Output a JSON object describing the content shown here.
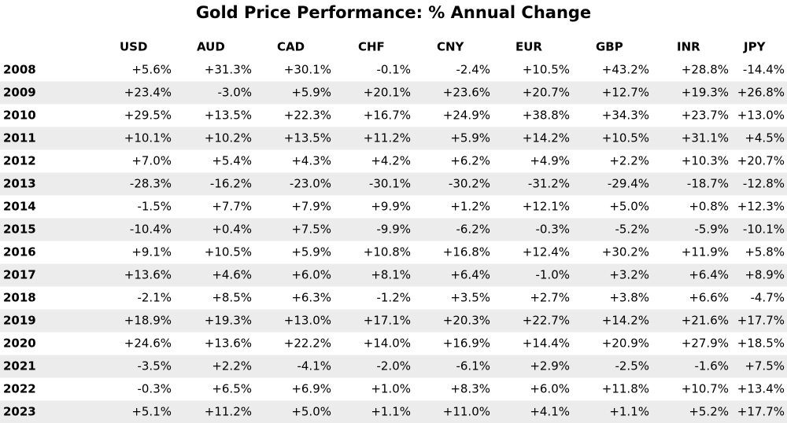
{
  "header": {
    "title": "Gold Price Performance: % Annual Change"
  },
  "table": {
    "columns": [
      "USD",
      "AUD",
      "CAD",
      "CHF",
      "CNY",
      "EUR",
      "GBP",
      "INR",
      "JPY"
    ],
    "positive_color": "#1f9a1f",
    "negative_color": "#ee1c25",
    "rows": [
      {
        "label": "2008",
        "cells": [
          "+5.6%",
          "+31.3%",
          "+30.1%",
          "-0.1%",
          "-2.4%",
          "+10.5%",
          "+43.2%",
          "+28.8%",
          "-14.4%"
        ]
      },
      {
        "label": "2009",
        "cells": [
          "+23.4%",
          "-3.0%",
          "+5.9%",
          "+20.1%",
          "+23.6%",
          "+20.7%",
          "+12.7%",
          "+19.3%",
          "+26.8%"
        ]
      },
      {
        "label": "2010",
        "cells": [
          "+29.5%",
          "+13.5%",
          "+22.3%",
          "+16.7%",
          "+24.9%",
          "+38.8%",
          "+34.3%",
          "+23.7%",
          "+13.0%"
        ]
      },
      {
        "label": "2011",
        "cells": [
          "+10.1%",
          "+10.2%",
          "+13.5%",
          "+11.2%",
          "+5.9%",
          "+14.2%",
          "+10.5%",
          "+31.1%",
          "+4.5%"
        ]
      },
      {
        "label": "2012",
        "cells": [
          "+7.0%",
          "+5.4%",
          "+4.3%",
          "+4.2%",
          "+6.2%",
          "+4.9%",
          "+2.2%",
          "+10.3%",
          "+20.7%"
        ]
      },
      {
        "label": "2013",
        "cells": [
          "-28.3%",
          "-16.2%",
          "-23.0%",
          "-30.1%",
          "-30.2%",
          "-31.2%",
          "-29.4%",
          "-18.7%",
          "-12.8%"
        ]
      },
      {
        "label": "2014",
        "cells": [
          "-1.5%",
          "+7.7%",
          "+7.9%",
          "+9.9%",
          "+1.2%",
          "+12.1%",
          "+5.0%",
          "+0.8%",
          "+12.3%"
        ]
      },
      {
        "label": "2015",
        "cells": [
          "-10.4%",
          "+0.4%",
          "+7.5%",
          "-9.9%",
          "-6.2%",
          "-0.3%",
          "-5.2%",
          "-5.9%",
          "-10.1%"
        ]
      },
      {
        "label": "2016",
        "cells": [
          "+9.1%",
          "+10.5%",
          "+5.9%",
          "+10.8%",
          "+16.8%",
          "+12.4%",
          "+30.2%",
          "+11.9%",
          "+5.8%"
        ]
      },
      {
        "label": "2017",
        "cells": [
          "+13.6%",
          "+4.6%",
          "+6.0%",
          "+8.1%",
          "+6.4%",
          "-1.0%",
          "+3.2%",
          "+6.4%",
          "+8.9%"
        ]
      },
      {
        "label": "2018",
        "cells": [
          "-2.1%",
          "+8.5%",
          "+6.3%",
          "-1.2%",
          "+3.5%",
          "+2.7%",
          "+3.8%",
          "+6.6%",
          "-4.7%"
        ]
      },
      {
        "label": "2019",
        "cells": [
          "+18.9%",
          "+19.3%",
          "+13.0%",
          "+17.1%",
          "+20.3%",
          "+22.7%",
          "+14.2%",
          "+21.6%",
          "+17.7%"
        ]
      },
      {
        "label": "2020",
        "cells": [
          "+24.6%",
          "+13.6%",
          "+22.2%",
          "+14.0%",
          "+16.9%",
          "+14.4%",
          "+20.9%",
          "+27.9%",
          "+18.5%"
        ]
      },
      {
        "label": "2021",
        "cells": [
          "-3.5%",
          "+2.2%",
          "-4.1%",
          "-2.0%",
          "-6.1%",
          "+2.9%",
          "-2.5%",
          "-1.6%",
          "+7.5%"
        ]
      },
      {
        "label": "2022",
        "cells": [
          "-0.3%",
          "+6.5%",
          "+6.9%",
          "+1.0%",
          "+8.3%",
          "+6.0%",
          "+11.8%",
          "+10.7%",
          "+13.4%"
        ]
      },
      {
        "label": "2023",
        "cells": [
          "+5.1%",
          "+11.2%",
          "+5.0%",
          "+1.1%",
          "+11.0%",
          "+4.1%",
          "+1.1%",
          "+5.2%",
          "+17.7%"
        ]
      }
    ]
  }
}
